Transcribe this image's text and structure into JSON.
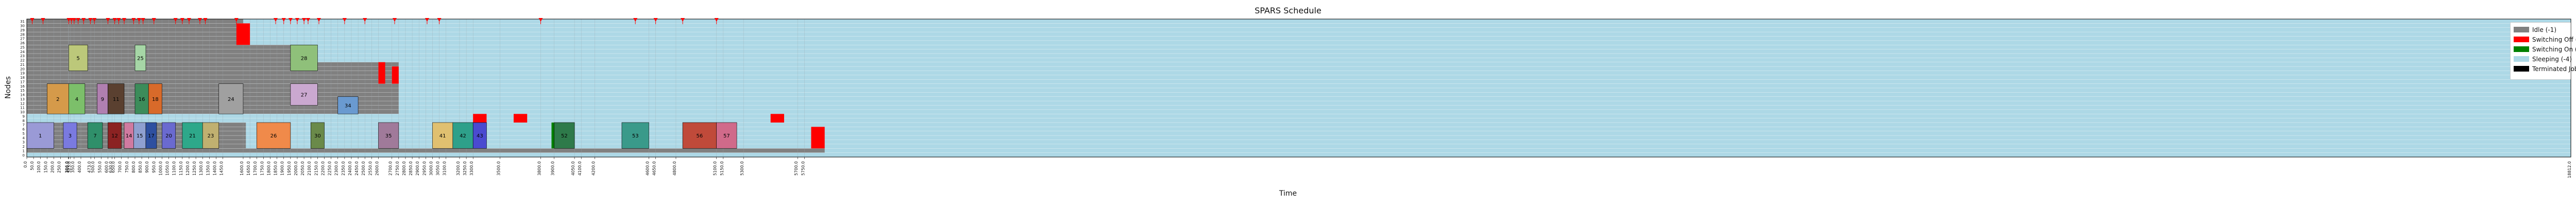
{
  "chart_data": {
    "type": "gantt",
    "title": "SPARS Schedule",
    "xlabel": "Time",
    "ylabel": "Nodes",
    "xlim": [
      0,
      18812
    ],
    "node_count": 32,
    "grid": true,
    "legend_position": "top-right",
    "legend": [
      {
        "label": "Idle (-1)",
        "color": "#808080"
      },
      {
        "label": "Switching Off (-2)",
        "color": "#ff0000"
      },
      {
        "label": "Switching On (-3)",
        "color": "#008000"
      },
      {
        "label": "Sleeping (-4)",
        "color": "#add8e6"
      },
      {
        "label": "Terminated Jobs",
        "color": "#000000"
      }
    ],
    "x_ticks": [
      0,
      50,
      100,
      150,
      200,
      250,
      306,
      310,
      323,
      350,
      400,
      473,
      500,
      550,
      600,
      630,
      650,
      700,
      750,
      800,
      850,
      900,
      950,
      1000,
      1050,
      1100,
      1150,
      1200,
      1250,
      1300,
      1350,
      1400,
      1450,
      1600,
      1650,
      1700,
      1750,
      1800,
      1850,
      1900,
      1950,
      2000,
      2050,
      2100,
      2150,
      2200,
      2250,
      2300,
      2350,
      2400,
      2450,
      2500,
      2550,
      2600,
      2700,
      2750,
      2800,
      2850,
      2900,
      2950,
      3000,
      3050,
      3100,
      3200,
      3250,
      3300,
      3500,
      3800,
      3900,
      4050,
      4100,
      4200,
      4600,
      4650,
      4800,
      5100,
      5150,
      5300,
      5700,
      5750
    ],
    "switch_events": [
      40,
      120,
      310,
      330,
      350,
      380,
      420,
      470,
      500,
      600,
      650,
      680,
      720,
      790,
      830,
      860,
      940,
      1100,
      1150,
      1200,
      1280,
      1320,
      1550,
      1840,
      1900,
      1950,
      2000,
      2050,
      2080,
      2160,
      2350,
      2500,
      2720,
      2960,
      3050,
      3800,
      4500,
      4650,
      4850,
      5100
    ],
    "jobs": [
      {
        "id": "1",
        "start": 0,
        "end": 200,
        "node_start": 2,
        "node_end": 7,
        "color": "#9a9ad6"
      },
      {
        "id": "2",
        "start": 150,
        "end": 310,
        "node_start": 10,
        "node_end": 16,
        "color": "#d59a4a"
      },
      {
        "id": "3",
        "start": 270,
        "end": 370,
        "node_start": 2,
        "node_end": 7,
        "color": "#7a7ae0"
      },
      {
        "id": "4",
        "start": 310,
        "end": 430,
        "node_start": 10,
        "node_end": 16,
        "color": "#7cbf6a"
      },
      {
        "id": "5",
        "start": 310,
        "end": 450,
        "node_start": 20,
        "node_end": 25,
        "color": "#bcc87a"
      },
      {
        "id": "7",
        "start": 450,
        "end": 560,
        "node_start": 2,
        "node_end": 7,
        "color": "#2f8f6a"
      },
      {
        "id": "9",
        "start": 520,
        "end": 600,
        "node_start": 10,
        "node_end": 16,
        "color": "#b07fb0"
      },
      {
        "id": "11",
        "start": 600,
        "end": 720,
        "node_start": 10,
        "node_end": 16,
        "color": "#5a4030"
      },
      {
        "id": "12",
        "start": 600,
        "end": 700,
        "node_start": 2,
        "node_end": 7,
        "color": "#8b2222"
      },
      {
        "id": "14",
        "start": 720,
        "end": 790,
        "node_start": 2,
        "node_end": 7,
        "color": "#d07aa0"
      },
      {
        "id": "15",
        "start": 790,
        "end": 880,
        "node_start": 2,
        "node_end": 7,
        "color": "#8fa0d0"
      },
      {
        "id": "16",
        "start": 800,
        "end": 900,
        "node_start": 10,
        "node_end": 16,
        "color": "#3c8c5a"
      },
      {
        "id": "17",
        "start": 880,
        "end": 960,
        "node_start": 2,
        "node_end": 7,
        "color": "#2e50a0"
      },
      {
        "id": "18",
        "start": 900,
        "end": 1000,
        "node_start": 10,
        "node_end": 16,
        "color": "#d86a2a"
      },
      {
        "id": "20",
        "start": 1000,
        "end": 1100,
        "node_start": 2,
        "node_end": 7,
        "color": "#6a6acf"
      },
      {
        "id": "21",
        "start": 1150,
        "end": 1300,
        "node_start": 2,
        "node_end": 7,
        "color": "#2ea88a"
      },
      {
        "id": "23",
        "start": 1300,
        "end": 1420,
        "node_start": 2,
        "node_end": 7,
        "color": "#c0b070"
      },
      {
        "id": "24",
        "start": 1420,
        "end": 1600,
        "node_start": 10,
        "node_end": 16,
        "color": "#a0a0a0"
      },
      {
        "id": "25",
        "start": 800,
        "end": 880,
        "node_start": 20,
        "node_end": 25,
        "color": "#a6d6a6"
      },
      {
        "id": "26",
        "start": 1700,
        "end": 1950,
        "node_start": 2,
        "node_end": 7,
        "color": "#f08a4a"
      },
      {
        "id": "27",
        "start": 1950,
        "end": 2150,
        "node_start": 12,
        "node_end": 16,
        "color": "#caa8d0"
      },
      {
        "id": "28",
        "start": 1950,
        "end": 2150,
        "node_start": 20,
        "node_end": 25,
        "color": "#8fc07a"
      },
      {
        "id": "30",
        "start": 2100,
        "end": 2200,
        "node_start": 2,
        "node_end": 7,
        "color": "#6a8a4a"
      },
      {
        "id": "34",
        "start": 2300,
        "end": 2450,
        "node_start": 10,
        "node_end": 13,
        "color": "#6a9ad0"
      },
      {
        "id": "35",
        "start": 2600,
        "end": 2750,
        "node_start": 2,
        "node_end": 7,
        "color": "#a07a9a"
      },
      {
        "id": "41",
        "start": 3000,
        "end": 3150,
        "node_start": 2,
        "node_end": 7,
        "color": "#e0c070"
      },
      {
        "id": "42",
        "start": 3150,
        "end": 3300,
        "node_start": 2,
        "node_end": 7,
        "color": "#2ea08a"
      },
      {
        "id": "43",
        "start": 3300,
        "end": 3400,
        "node_start": 2,
        "node_end": 7,
        "color": "#4a4ad0"
      },
      {
        "id": "52",
        "start": 3900,
        "end": 4050,
        "node_start": 2,
        "node_end": 7,
        "color": "#2e7a4a"
      },
      {
        "id": "53",
        "start": 4400,
        "end": 4600,
        "node_start": 2,
        "node_end": 7,
        "color": "#3a9a8a"
      },
      {
        "id": "56",
        "start": 4850,
        "end": 5100,
        "node_start": 2,
        "node_end": 7,
        "color": "#c04a3a"
      },
      {
        "id": "57",
        "start": 5100,
        "end": 5250,
        "node_start": 2,
        "node_end": 7,
        "color": "#d06a8a"
      }
    ],
    "switch_on_blocks": [
      {
        "start": 3880,
        "end": 4050,
        "node_start": 2,
        "node_end": 7
      }
    ],
    "switch_off_blocks": [
      {
        "start": 1550,
        "end": 1650,
        "node_start": 26,
        "node_end": 30
      },
      {
        "start": 2600,
        "end": 2650,
        "node_start": 17,
        "node_end": 21
      },
      {
        "start": 2700,
        "end": 2750,
        "node_start": 17,
        "node_end": 20
      },
      {
        "start": 3300,
        "end": 3400,
        "node_start": 8,
        "node_end": 9
      },
      {
        "start": 3600,
        "end": 3700,
        "node_start": 8,
        "node_end": 9
      },
      {
        "start": 5500,
        "end": 5600,
        "node_start": 8,
        "node_end": 9
      },
      {
        "start": 5800,
        "end": 5900,
        "node_start": 2,
        "node_end": 6
      }
    ]
  }
}
